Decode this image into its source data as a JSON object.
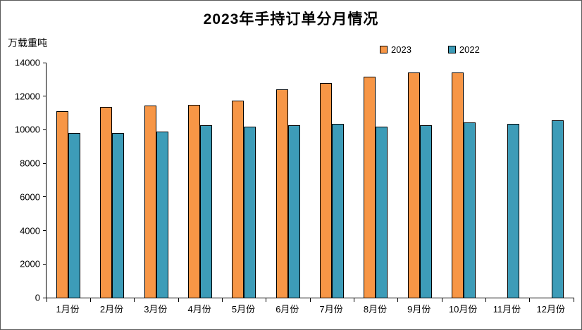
{
  "chart_data": {
    "type": "bar",
    "title": "2023年手持订单分月情况",
    "unit_label": "万载重吨",
    "categories": [
      "1月份",
      "2月份",
      "3月份",
      "4月份",
      "5月份",
      "6月份",
      "7月份",
      "8月份",
      "9月份",
      "10月份",
      "11月份",
      "12月份"
    ],
    "series": [
      {
        "name": "2023",
        "color": "#F79646",
        "values": [
          11100,
          11350,
          11450,
          11500,
          11750,
          12400,
          12800,
          13150,
          13400,
          13400,
          null,
          null
        ]
      },
      {
        "name": "2022",
        "color": "#3D9CB8",
        "values": [
          9800,
          9800,
          9900,
          10250,
          10200,
          10250,
          10350,
          10200,
          10250,
          10450,
          10350,
          10550
        ]
      }
    ],
    "ylim": [
      0,
      14000
    ],
    "ytick_step": 2000,
    "grid": false,
    "legend_position": "top-center"
  }
}
